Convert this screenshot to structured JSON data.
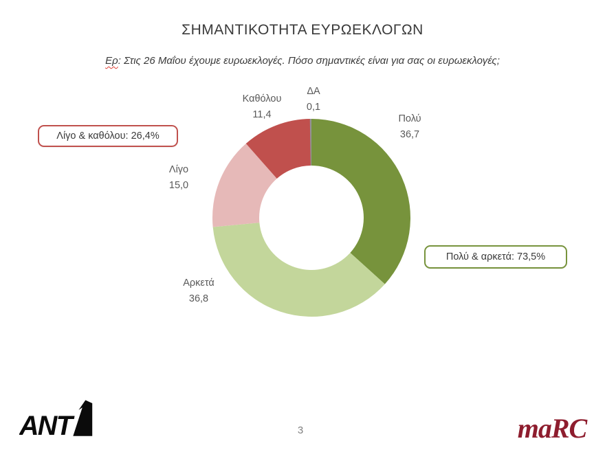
{
  "page": {
    "title": "ΣΗΜΑΝΤΙΚΟΤΗΤΑ ΕΥΡΩΕΚΛΟΓΩΝ",
    "subtitle_prefix": "Ερ",
    "subtitle_rest": ": Στις 26 Μαΐου έχουμε ευρωεκλογές. Πόσο σημαντικές είναι για σας οι ευρωεκλογές;"
  },
  "chart_data": {
    "type": "pie",
    "style": "donut",
    "title": "ΣΗΜΑΝΤΙΚΟΤΗΤΑ ΕΥΡΩΕΚΛΟΓΩΝ",
    "categories": [
      "Πολύ",
      "Αρκετά",
      "Λίγο",
      "Καθόλου",
      "ΔΑ"
    ],
    "values": [
      36.7,
      36.8,
      15.0,
      11.4,
      0.1
    ],
    "value_labels": [
      "36,7",
      "36,8",
      "15,0",
      "11,4",
      "0,1"
    ],
    "colors": [
      "#77933C",
      "#C3D69B",
      "#E6B9B8",
      "#C0504D",
      "#939399"
    ],
    "start_angle_deg": 0,
    "direction": "clockwise",
    "inner_radius_ratio": 0.53,
    "legend_position": "none",
    "grid": false,
    "labels_position": "outside"
  },
  "annotations": {
    "left_box": {
      "label": "Λίγο & καθόλου: 26,4%",
      "border_color": "#C0504D"
    },
    "right_box": {
      "label": "Πολύ & αρκετά: 73,5%",
      "border_color": "#77933C"
    }
  },
  "footer": {
    "left_logo_text": "ANT",
    "right_logo_text": "maRC",
    "marc_color": "#8E1D2E",
    "page_number": "3"
  }
}
